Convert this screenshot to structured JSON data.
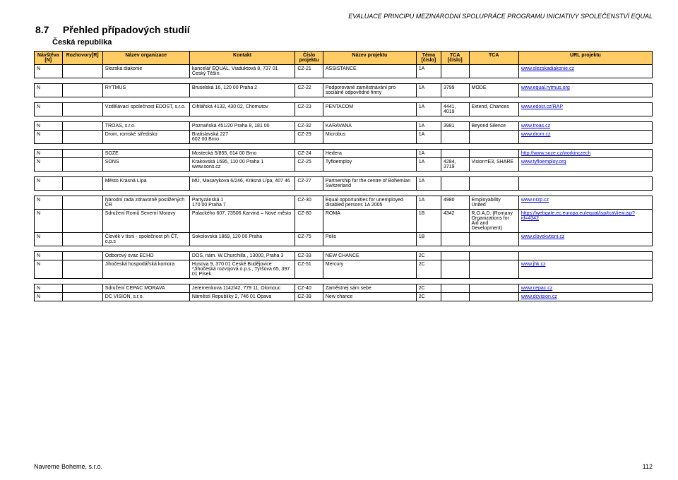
{
  "header_right": "EVALUACE PRINCIPU MEZINÁRODNÍ SPOLUPRÁCE PROGRAMU INICIATIVY SPOLEČENSTVÍ EQUAL",
  "section_number": "8.7",
  "section_title": "Přehled případových studií",
  "subtitle": "Česká republika",
  "footer_left": "Navreme Boheme, s.r.o.",
  "footer_page": "112",
  "table": {
    "columns": [
      "Návštěva [N]",
      "Rozhovory[R]",
      "Název organizace",
      "Kontakt",
      "Číslo projektu",
      "Název projektu",
      "Téma [číslo]",
      "TCA [číslo]",
      "TCA",
      "URL projektu"
    ],
    "groups": [
      {
        "rows": [
          {
            "n": "N",
            "r": "",
            "org": "Slezská diakonie",
            "kontakt": "kancelář EQUAL, Viaduktová 8, 737 01 Český Těšín",
            "cp": "CZ-21",
            "np": "ASSISTANCE",
            "tema": "1A",
            "tcac": "",
            "tca": "",
            "url": "www.slezskadiakonie.cz",
            "is_link": true
          }
        ]
      },
      {
        "rows": [
          {
            "n": "N",
            "r": "",
            "org": "RYTMUS",
            "kontakt": "Bruselská 16, 120 00 Praha 2",
            "cp": "CZ-22",
            "np": "Podporované zaměstnávání pro sociálně odpovědné firmy",
            "tema": "1A",
            "tcac": "3799",
            "tca": "MODE",
            "url": "www.equal.rytmus.org",
            "is_link": true
          }
        ]
      },
      {
        "rows": [
          {
            "n": "N",
            "r": "",
            "org": "Vzdělávací společnost EDOST, s.r.o.",
            "kontakt": "Cihlářská 4132, 430 02, Chomutov",
            "cp": "CZ-23",
            "np": "PENTACOM",
            "tema": "1A",
            "tcac": "4441, 4019",
            "tca": "Extend, Chances",
            "url": "www.edost.cz/RAP",
            "is_link": true
          }
        ]
      },
      {
        "rows": [
          {
            "n": "N",
            "r": "",
            "org": "TROAS, s.r.o.",
            "kontakt": "Poznaňská 451/20 Praha 8, 181 00",
            "cp": "CZ-32",
            "np": "KARAVANA",
            "tema": "1A",
            "tcac": "3981",
            "tca": "Beyond Silence",
            "url": "www.troas.cz",
            "is_link": true
          },
          {
            "n": "N",
            "r": "",
            "org": "Drom, romské středisko",
            "kontakt": "Bratislavská 227\n602 00 Brno",
            "cp": "CZ-29",
            "np": "Microbus",
            "tema": "1A",
            "tcac": "",
            "tca": "",
            "url": "www.drom.cz",
            "is_link": true
          }
        ]
      },
      {
        "rows": [
          {
            "n": "N",
            "r": "",
            "org": "SOZE",
            "kontakt": "Mostecká 5/855, 614 00 Brno",
            "cp": "CZ-24",
            "np": "Hedera",
            "tema": "1A",
            "tcac": "",
            "tca": "",
            "url": "http://www.soze.cz/workinczech",
            "is_link": true
          },
          {
            "n": "N",
            "r": "",
            "org": "SONS",
            "kontakt": "Krakovská 1695, 110 00 Praha 1 www.sons.cz",
            "cp": "CZ-25",
            "np": "Tyfloemploy",
            "tema": "1A",
            "tcac": "4284, 3719",
            "tca": "Vision=E3, SHARE",
            "url": "www.tyfloemploy.org",
            "is_link": true
          }
        ]
      },
      {
        "rows": [
          {
            "n": "N",
            "r": "",
            "org": "Město Krásná Lípa",
            "kontakt": "MÚ, Masarykova 6/246, Krásná Lípa, 407 46",
            "cp": "CZ-27",
            "np": "Partnership for the centre of Bohemian Switzerland",
            "tema": "1A",
            "tcac": "",
            "tca": "",
            "url": "",
            "is_link": false
          }
        ]
      },
      {
        "rows": [
          {
            "n": "N",
            "r": "",
            "org": "Národní rada zdravotně postižených ČR",
            "kontakt": "Partyzánská 1\n170 00 Praha 7",
            "cp": "CZ-30",
            "np": "Equal opportunities for unemployed disabled persons 1A 2005",
            "tema": "1A",
            "tcac": "4980",
            "tca": "Employability United",
            "url": "www.nrzp.cz",
            "is_link": true
          },
          {
            "n": "N",
            "r": "",
            "org": "Sdružení Romů Severní Moravy",
            "kontakt": "Palackého 607, 73506 Karviná – Nové město",
            "cp": "CZ-80",
            "np": "ROMA",
            "tema": "1B",
            "tcac": "4342",
            "tca": "R.O.A.D. (Romany Organizations for Aid and Development)",
            "url": "https://webgate.ec.europa.eu/equal/jsp/tcaView.jsp?id=4342",
            "is_link": true
          },
          {
            "n": "N",
            "r": "",
            "org": "Člověk v tísni - společnost při ČT, o.p.s",
            "kontakt": "Sokolovská 1869, 120 00 Praha",
            "cp": "CZ-75",
            "np": "Polis",
            "tema": "1B",
            "tcac": "",
            "tca": "",
            "url": "www.clovekvtisni.cz",
            "is_link": true
          }
        ]
      },
      {
        "rows": [
          {
            "n": "N",
            "r": "",
            "org": "Odborový svaz ECHO",
            "kontakt": "DOS, nám. W.Churchilla , 13000, Praha 3",
            "cp": "CZ-33",
            "np": "NEW CHANCE",
            "tema": "2C",
            "tcac": "",
            "tca": "",
            "url": "",
            "is_link": false
          },
          {
            "n": "N",
            "r": "",
            "org": "Jihočeská hospodářská komora",
            "kontakt": "Husova 9, 370 01 České Budějovice *Jihočeská rozvojová o.p.s., Tyršova 65, 397 01 Písek",
            "cp": "CZ-51",
            "np": "Mercury",
            "tema": "2C",
            "tcac": "",
            "tca": "",
            "url": "www.jhk.cz",
            "is_link": true
          }
        ]
      },
      {
        "rows": [
          {
            "n": "N",
            "r": "",
            "org": "Sdružení CEPAC MORAVA",
            "kontakt": "Jeremenkova 1142/42, 779 11, Olomouc",
            "cp": "CZ-40",
            "np": "Zaměstnej sám sebe",
            "tema": "2C",
            "tcac": "",
            "tca": "",
            "url": "www.cepac.cz",
            "is_link": true
          },
          {
            "n": "N",
            "r": "",
            "org": "DC VISION, s.r.o.",
            "kontakt": "Náměstí Republiky 2, 746 01 Opava",
            "cp": "CZ-39",
            "np": "New chance",
            "tema": "2C",
            "tcac": "",
            "tca": "",
            "url": "www.dcvision.cz",
            "is_link": true
          }
        ]
      }
    ],
    "header_bg": "#ffcc66",
    "border_color": "#000000",
    "font_size_pt": 7
  }
}
